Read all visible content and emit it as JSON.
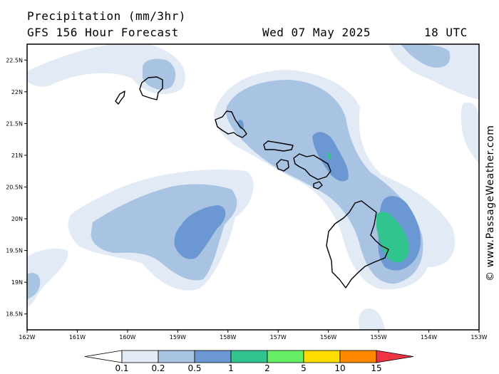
{
  "header": {
    "title": "Precipitation (mm/3hr)",
    "subtitle": "GFS 156 Hour Forecast",
    "date": "Wed 07 May 2025",
    "time": "18 UTC"
  },
  "map": {
    "region": "Hawaiian Islands",
    "lat_labels": [
      "22.5N",
      "22N",
      "21.5N",
      "21N",
      "20.5N",
      "20N",
      "19.5N",
      "19N",
      "18.5N"
    ],
    "lon_labels": [
      "162W",
      "161W",
      "160W",
      "159W",
      "158W",
      "157W",
      "156W",
      "155W",
      "154W",
      "153W"
    ],
    "lat_range": [
      18.25,
      22.75
    ],
    "lon_range": [
      -162,
      -153
    ]
  },
  "colorbar": {
    "labels": [
      "0.1",
      "0.2",
      "0.5",
      "1",
      "2",
      "5",
      "10",
      "15"
    ],
    "colors": [
      "#e2eaf6",
      "#a9c3e3",
      "#6b98d2",
      "#31c48f",
      "#66ee66",
      "#ffdd00",
      "#ff8800",
      "#ee3344"
    ],
    "below_color": "#ffffff"
  },
  "palette": {
    "lightest": "#e2eaf6",
    "light": "#a9c3e3",
    "medium": "#6b98d2",
    "heavy": "#31c48f"
  },
  "credit": "© www.PassageWeather.com"
}
